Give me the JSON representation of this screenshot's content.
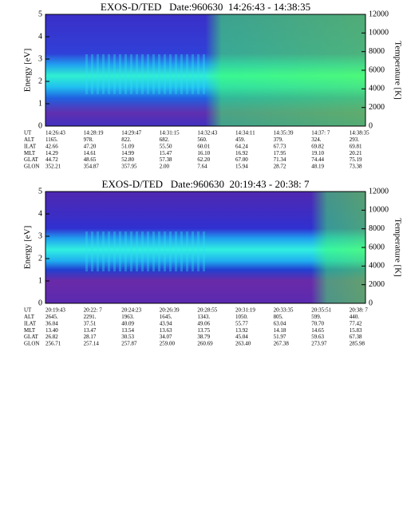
{
  "chart_data": [
    {
      "type": "spectrogram",
      "title": "EXOS-D/TED   Date:960630  14:26:43 - 14:38:35",
      "ylabel": "Energy [eV]",
      "y2label": "Temperature [K]",
      "ylim": [
        0,
        5
      ],
      "yticks": [
        0,
        1,
        2,
        3,
        4,
        5
      ],
      "y2lim": [
        0,
        12000
      ],
      "y2ticks": [
        0,
        2000,
        4000,
        6000,
        8000,
        10000,
        12000
      ],
      "rows": [
        {
          "label": "UT",
          "values": [
            "14:26:43",
            "14:28:19",
            "14:29:47",
            "14:31:15",
            "14:32:43",
            "14:34:11",
            "14:35:39",
            "14:37: 7",
            "14:38:35"
          ]
        },
        {
          "label": "ALT",
          "values": [
            "1165.",
            "978.",
            "822.",
            "682.",
            "560.",
            "459.",
            "379.",
            "324.",
            "293."
          ]
        },
        {
          "label": "ILAT",
          "values": [
            "42.66",
            "47.20",
            "51.09",
            "55.50",
            "60.01",
            "64.24",
            "67.73",
            "69.82",
            "69.81"
          ]
        },
        {
          "label": "MLT",
          "values": [
            "14.29",
            "14.61",
            "14.99",
            "15.47",
            "16.10",
            "16.92",
            "17.95",
            "19.10",
            "20.21"
          ]
        },
        {
          "label": "GLAT",
          "values": [
            "44.72",
            "48.65",
            "52.80",
            "57.38",
            "62.20",
            "67.00",
            "71.34",
            "74.44",
            "75.19"
          ]
        },
        {
          "label": "GLON",
          "values": [
            "352.21",
            "354.87",
            "357.95",
            "2.00",
            "7.64",
            "15.94",
            "28.72",
            "48.19",
            "73.38"
          ]
        }
      ]
    },
    {
      "type": "spectrogram",
      "title": "EXOS-D/TED   Date:960630  20:19:43 - 20:38: 7",
      "ylabel": "Energy [eV]",
      "y2label": "Temperature [K]",
      "ylim": [
        0,
        5
      ],
      "yticks": [
        0,
        1,
        2,
        3,
        4,
        5
      ],
      "y2lim": [
        0,
        12000
      ],
      "y2ticks": [
        0,
        2000,
        4000,
        6000,
        8000,
        10000,
        12000
      ],
      "rows": [
        {
          "label": "UT",
          "values": [
            "20:19:43",
            "20:22: 7",
            "20:24:23",
            "20:26:39",
            "20:28:55",
            "20:31:19",
            "20:33:35",
            "20:35:51",
            "20:38: 7"
          ]
        },
        {
          "label": "ALT",
          "values": [
            "2645.",
            "2291.",
            "1963.",
            "1645.",
            "1343.",
            "1050.",
            "805.",
            "599.",
            "440."
          ]
        },
        {
          "label": "ILAT",
          "values": [
            "36.04",
            "37.51",
            "40.09",
            "43.94",
            "49.06",
            "55.77",
            "63.04",
            "70.70",
            "77.42"
          ]
        },
        {
          "label": "MLT",
          "values": [
            "13.40",
            "13.47",
            "13.54",
            "13.63",
            "13.75",
            "13.92",
            "14.18",
            "14.65",
            "15.83"
          ]
        },
        {
          "label": "GLAT",
          "values": [
            "26.82",
            "28.17",
            "30.53",
            "34.07",
            "38.79",
            "45.04",
            "51.97",
            "59.63",
            "67.38"
          ]
        },
        {
          "label": "GLON",
          "values": [
            "256.71",
            "257.14",
            "257.87",
            "259.00",
            "260.69",
            "263.40",
            "267.38",
            "273.97",
            "285.98"
          ]
        }
      ]
    }
  ]
}
